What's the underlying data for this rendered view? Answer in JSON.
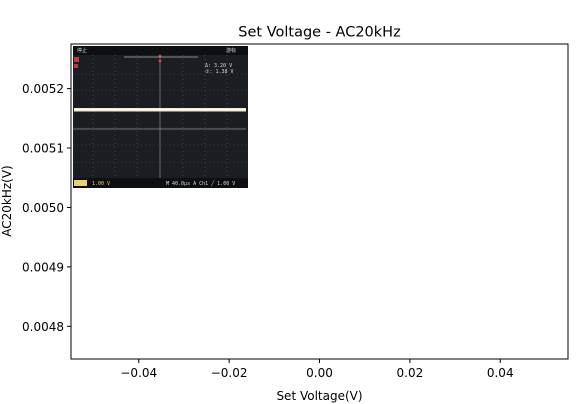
{
  "chart_data": {
    "type": "scatter",
    "title": "Set Voltage - AC20kHz",
    "xlabel": "Set Voltage(V)",
    "ylabel": "AC20kHz(V)",
    "xlim": [
      -0.055,
      0.055
    ],
    "ylim": [
      0.004745,
      0.005275
    ],
    "xticks": [
      -0.04,
      -0.02,
      0.0,
      0.02,
      0.04
    ],
    "xtick_labels": [
      "−0.04",
      "−0.02",
      "0.00",
      "0.02",
      "0.04"
    ],
    "yticks": [
      0.0048,
      0.0049,
      0.005,
      0.0051,
      0.0052
    ],
    "ytick_labels": [
      "0.0048",
      "0.0049",
      "0.0050",
      "0.0051",
      "0.0052"
    ],
    "grid": false,
    "series": [
      {
        "x": [],
        "y": []
      }
    ],
    "inset_image": {
      "description_icon": "oscilloscope-screen-icon",
      "texts": {
        "top_left": "停止",
        "top_right": "游标",
        "cursor_a": "Δ:  3.20 V",
        "cursor_b": "①:  1.38 V",
        "bottom_ch": "1.00 V",
        "bottom_tb": "M 40.0µs  A  Ch1  ╱  1.00 V"
      }
    }
  }
}
